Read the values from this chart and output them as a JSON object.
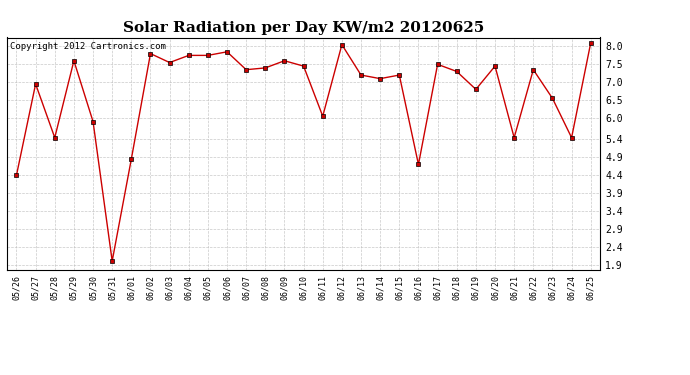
{
  "title": "Solar Radiation per Day KW/m2 20120625",
  "copyright": "Copyright 2012 Cartronics.com",
  "labels": [
    "05/26",
    "05/27",
    "05/28",
    "05/29",
    "05/30",
    "05/31",
    "06/01",
    "06/02",
    "06/03",
    "06/04",
    "06/05",
    "06/06",
    "06/07",
    "06/08",
    "06/09",
    "06/10",
    "06/11",
    "06/12",
    "06/13",
    "06/14",
    "06/15",
    "06/16",
    "06/17",
    "06/18",
    "06/19",
    "06/20",
    "06/21",
    "06/22",
    "06/23",
    "06/24",
    "06/25"
  ],
  "values": [
    4.4,
    6.95,
    5.45,
    7.6,
    5.9,
    2.0,
    4.85,
    7.8,
    7.55,
    7.75,
    7.75,
    7.85,
    7.35,
    7.4,
    7.6,
    7.45,
    6.05,
    8.05,
    7.2,
    7.1,
    7.2,
    4.7,
    7.5,
    7.3,
    6.8,
    7.45,
    5.45,
    7.35,
    6.55,
    5.45,
    8.1
  ],
  "line_color": "#cc0000",
  "marker": "s",
  "marker_size": 2.5,
  "background_color": "#ffffff",
  "plot_bg_color": "#ffffff",
  "grid_color": "#bbbbbb",
  "title_fontsize": 11,
  "yticks": [
    1.9,
    2.4,
    2.9,
    3.4,
    3.9,
    4.4,
    4.9,
    5.4,
    6.0,
    6.5,
    7.0,
    7.5,
    8.0
  ],
  "ylim": [
    1.75,
    8.25
  ],
  "copyright_fontsize": 6.5,
  "xtick_fontsize": 6,
  "ytick_fontsize": 7
}
